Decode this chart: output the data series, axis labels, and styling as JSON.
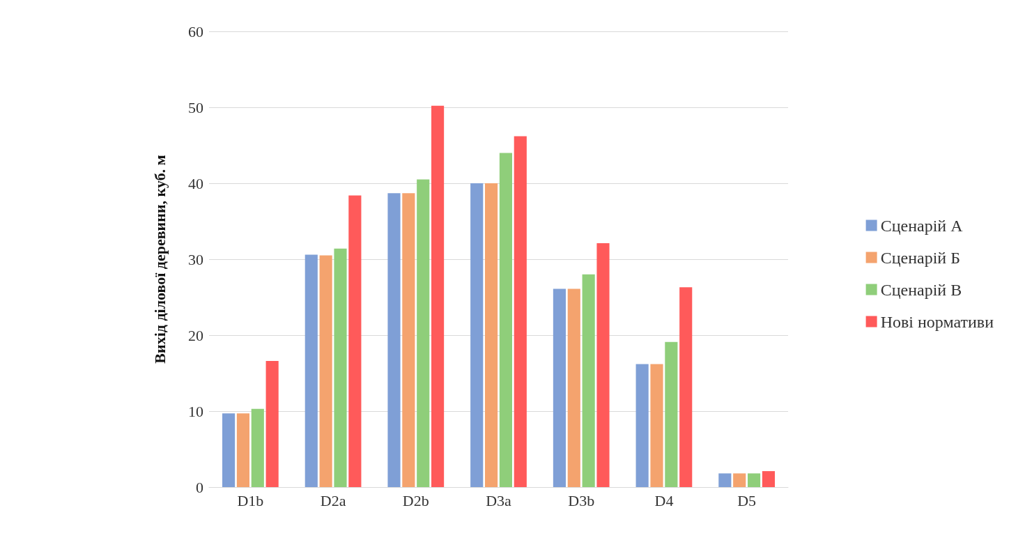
{
  "chart_data": {
    "type": "bar",
    "ylabel": "Вихід ділової деревини, куб. м",
    "categories": [
      "D1b",
      "D2a",
      "D2b",
      "D3a",
      "D3b",
      "D4",
      "D5"
    ],
    "series": [
      {
        "name": "Сценарій А",
        "color": "#7f9fd6",
        "values": [
          9.7,
          30.6,
          38.7,
          40.0,
          26.1,
          16.2,
          1.8
        ]
      },
      {
        "name": "Сценарій Б",
        "color": "#f4a36e",
        "values": [
          9.7,
          30.5,
          38.7,
          40.0,
          26.1,
          16.2,
          1.8
        ]
      },
      {
        "name": "Сценарій В",
        "color": "#8fce7a",
        "values": [
          10.3,
          31.4,
          40.5,
          44.0,
          28.0,
          19.1,
          1.8
        ]
      },
      {
        "name": "Нові нормативи",
        "color": "#ff5a5a",
        "values": [
          16.6,
          38.4,
          50.2,
          46.2,
          32.1,
          26.3,
          2.1
        ]
      }
    ],
    "ylim": [
      0,
      60
    ],
    "yticks": [
      0,
      10,
      20,
      30,
      40,
      50,
      60
    ],
    "grid": "y",
    "legend": "right"
  }
}
